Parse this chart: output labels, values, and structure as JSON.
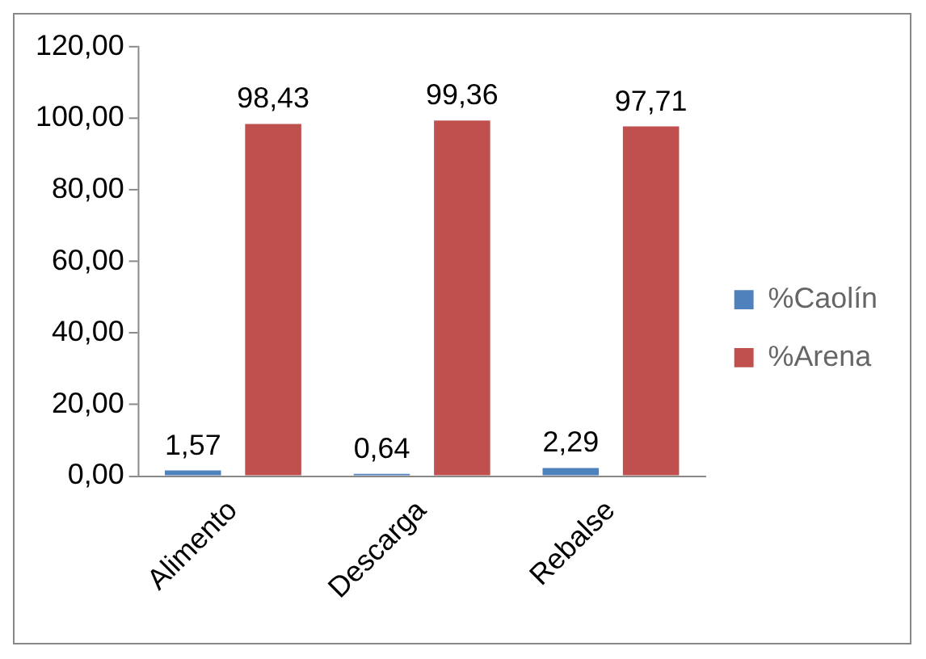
{
  "chart_data": {
    "type": "bar",
    "categories": [
      "Alimento",
      "Descarga",
      "Rebalse"
    ],
    "series": [
      {
        "name": "%Caolín",
        "color": "#4f81bd",
        "values": [
          1.57,
          0.64,
          2.29
        ],
        "value_labels": [
          "1,57",
          "0,64",
          "2,29"
        ]
      },
      {
        "name": "%Arena",
        "color": "#c0504d",
        "values": [
          98.43,
          99.36,
          97.71
        ],
        "value_labels": [
          "98,43",
          "99,36",
          "97,71"
        ]
      }
    ],
    "ylim": [
      0,
      120
    ],
    "yticks": [
      {
        "value": 0,
        "label": "0,00"
      },
      {
        "value": 20,
        "label": "20,00"
      },
      {
        "value": 40,
        "label": "40,00"
      },
      {
        "value": 60,
        "label": "60,00"
      },
      {
        "value": 80,
        "label": "80,00"
      },
      {
        "value": 100,
        "label": "100,00"
      },
      {
        "value": 120,
        "label": "120,00"
      }
    ],
    "grid": false,
    "legend": "right"
  }
}
